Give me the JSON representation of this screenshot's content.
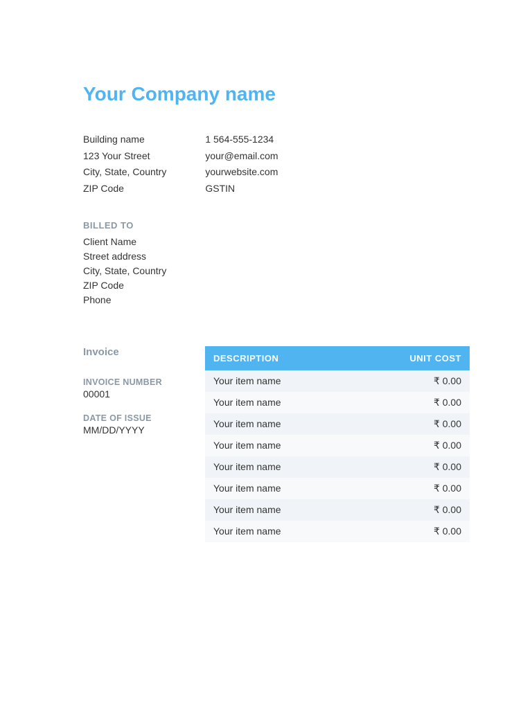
{
  "colors": {
    "accent": "#4fb4ef",
    "muted_label": "#8a98a6",
    "text": "#333333",
    "row_odd": "#f0f3f7",
    "row_even": "#f7f9fb",
    "white": "#ffffff"
  },
  "company": {
    "name": "Your Company name",
    "address": {
      "building": "Building name",
      "street": "123 Your Street",
      "city_state_country": "City, State, Country",
      "zip": "ZIP Code"
    },
    "contact": {
      "phone": "1 564-555-1234",
      "email": "your@email.com",
      "website": "yourwebsite.com",
      "gstin": "GSTIN"
    }
  },
  "billed_to": {
    "label": "BILLED TO",
    "client_name": "Client Name",
    "street": "Street address",
    "city_state_country": "City, State, Country",
    "zip": "ZIP Code",
    "phone": "Phone"
  },
  "invoice": {
    "heading": "Invoice",
    "number_label": "INVOICE NUMBER",
    "number": "00001",
    "date_label": "DATE OF ISSUE",
    "date": "MM/DD/YYYY"
  },
  "table": {
    "headers": {
      "description": "DESCRIPTION",
      "unit_cost": "UNIT COST"
    },
    "rows": [
      {
        "description": "Your item name",
        "unit_cost": "₹ 0.00"
      },
      {
        "description": "Your item name",
        "unit_cost": "₹ 0.00"
      },
      {
        "description": "Your item name",
        "unit_cost": "₹ 0.00"
      },
      {
        "description": "Your item name",
        "unit_cost": "₹ 0.00"
      },
      {
        "description": "Your item name",
        "unit_cost": "₹ 0.00"
      },
      {
        "description": "Your item name",
        "unit_cost": "₹ 0.00"
      },
      {
        "description": "Your item name",
        "unit_cost": "₹ 0.00"
      },
      {
        "description": "Your item name",
        "unit_cost": "₹ 0.00"
      }
    ]
  }
}
